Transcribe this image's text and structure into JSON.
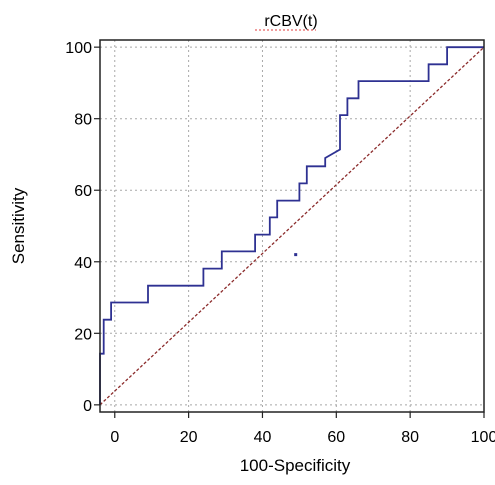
{
  "chart_data": {
    "type": "line",
    "title": "rCBV(t)",
    "xlabel": "100-Specificity",
    "ylabel": "Sensitivity",
    "xlim": [
      -4,
      100
    ],
    "ylim": [
      -2,
      102
    ],
    "x_ticks": [
      0,
      20,
      40,
      60,
      80,
      100
    ],
    "y_ticks": [
      0,
      20,
      40,
      60,
      80,
      100
    ],
    "grid": true,
    "series": [
      {
        "kind": "roc-step",
        "color": "#2e3192",
        "points": [
          [
            -4,
            0
          ],
          [
            -4,
            14.3
          ],
          [
            -3,
            14.3
          ],
          [
            -3,
            23.8
          ],
          [
            -1,
            23.8
          ],
          [
            -1,
            28.6
          ],
          [
            9,
            28.6
          ],
          [
            9,
            33.3
          ],
          [
            24,
            33.3
          ],
          [
            24,
            38.1
          ],
          [
            29,
            38.1
          ],
          [
            29,
            42.9
          ],
          [
            38,
            42.9
          ],
          [
            38,
            47.6
          ],
          [
            42,
            47.6
          ],
          [
            42,
            52.4
          ],
          [
            44,
            52.4
          ],
          [
            44,
            57.1
          ],
          [
            50,
            57.1
          ],
          [
            50,
            61.9
          ],
          [
            52,
            61.9
          ],
          [
            52,
            66.7
          ],
          [
            57,
            66.7
          ],
          [
            57,
            69
          ],
          [
            61,
            71.4
          ],
          [
            61,
            81
          ],
          [
            63,
            81
          ],
          [
            63,
            85.7
          ],
          [
            66,
            85.7
          ],
          [
            66,
            90.5
          ],
          [
            85,
            90.5
          ],
          [
            85,
            95.2
          ],
          [
            90,
            95.2
          ],
          [
            90,
            100
          ],
          [
            100,
            100
          ]
        ]
      },
      {
        "kind": "reference-diagonal",
        "color": "#8b2b2b",
        "points": [
          [
            -4,
            0
          ],
          [
            100,
            100
          ]
        ]
      }
    ],
    "marker_point": [
      49,
      42
    ],
    "marker_color": "#2e3192"
  }
}
